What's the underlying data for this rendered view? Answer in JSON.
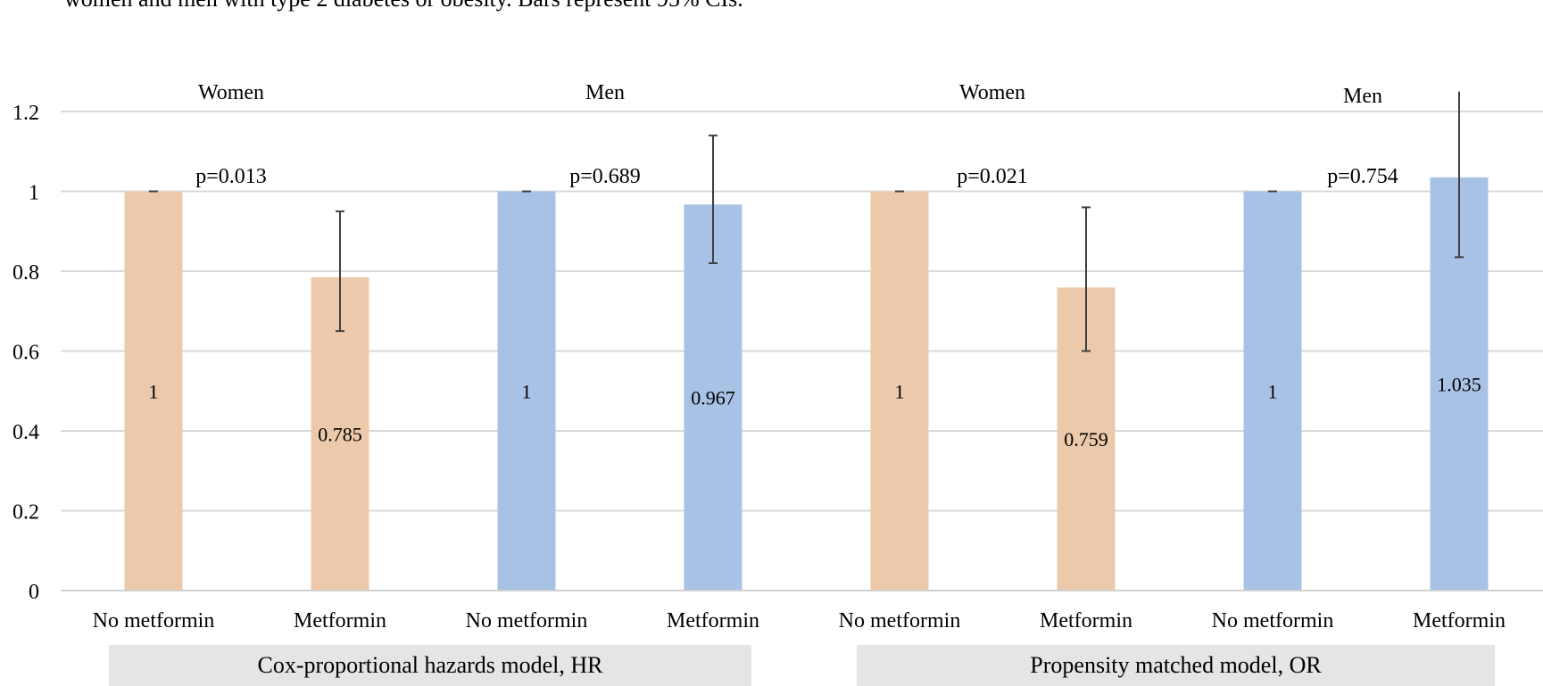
{
  "caption": "women and men with type 2 diabetes or obesity. Bars represent 95% CIs.",
  "chart_data": {
    "type": "bar",
    "ylim": [
      0,
      1.2
    ],
    "yticks": [
      0,
      0.2,
      0.4,
      0.6,
      0.8,
      1,
      1.2
    ],
    "ytick_labels": [
      "0",
      "0.2",
      "0.4",
      "0.6",
      "0.8",
      "1",
      "1.2"
    ],
    "grid": true,
    "categories": [
      "No metformin",
      "Metformin",
      "No metformin",
      "Metformin",
      "No metformin",
      "Metformin",
      "No metformin",
      "Metformin"
    ],
    "values": [
      1,
      0.785,
      1,
      0.967,
      1,
      0.759,
      1,
      1.035
    ],
    "value_labels": [
      "1",
      "0.785",
      "1",
      "0.967",
      "1",
      "0.759",
      "1",
      "1.035"
    ],
    "ci_low": [
      1,
      0.65,
      1,
      0.82,
      1,
      0.6,
      1,
      0.835
    ],
    "ci_high": [
      1,
      0.95,
      1,
      1.14,
      1,
      0.96,
      1,
      1.25
    ],
    "sex": [
      "Women",
      "Women",
      "Men",
      "Men",
      "Women",
      "Women",
      "Men",
      "Men"
    ],
    "colors": {
      "Women": "#ecc9aa",
      "Men": "#a8c2e6",
      "error": "#404040",
      "grid": "#d9d9d9"
    },
    "pair_labels": [
      "Women",
      "Men",
      "Women",
      "Men"
    ],
    "p_values": [
      "p=0.013",
      "p=0.689",
      "p=0.021",
      "p=0.754"
    ],
    "groups": [
      "Cox-proportional hazards model, HR",
      "Propensity matched model, OR"
    ]
  }
}
